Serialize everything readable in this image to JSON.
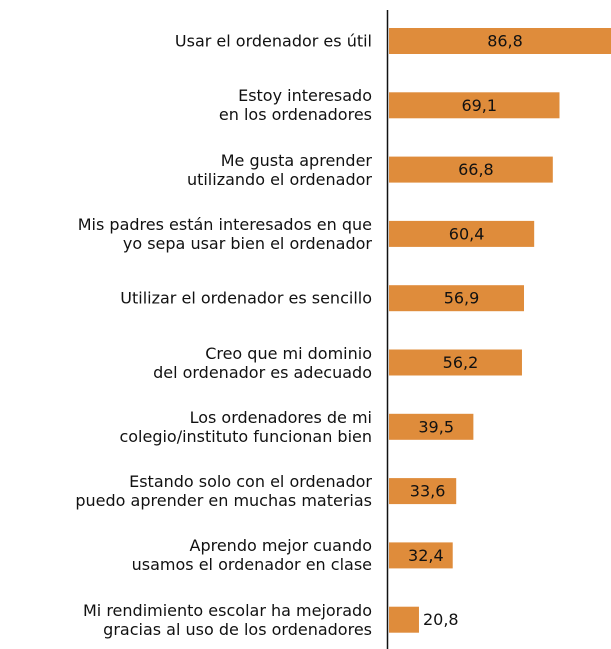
{
  "chart_data": {
    "type": "barh",
    "categories": [
      "Usar el ordenador es útil",
      "Estoy interesado\nen los ordenadores",
      "Me gusta aprender\nutilizando el ordenador",
      "Mis padres están interesados en que\nyo sepa usar bien el ordenador",
      "Utilizar el ordenador es sencillo",
      "Creo que mi dominio\ndel ordenador es adecuado",
      "Los ordenadores de mi\ncolegio/instituto funcionan bien",
      "Estando solo con el ordenador\npuedo aprender en muchas materias",
      "Aprendo mejor cuando\nusamos el ordenador en clase",
      "Mi rendimiento escolar ha mejorado\ngracias al uso de los ordenadores"
    ],
    "values": [
      86.8,
      69.1,
      66.8,
      60.4,
      56.9,
      56.2,
      39.5,
      33.6,
      32.4,
      20.8
    ],
    "value_labels": [
      "86,8",
      "69,1",
      "66,8",
      "60,4",
      "56,9",
      "56,2",
      "39,5",
      "33,6",
      "32,4",
      "20,8"
    ],
    "color": "#df8c3b",
    "xlim": [
      10.5,
      86.8
    ]
  }
}
